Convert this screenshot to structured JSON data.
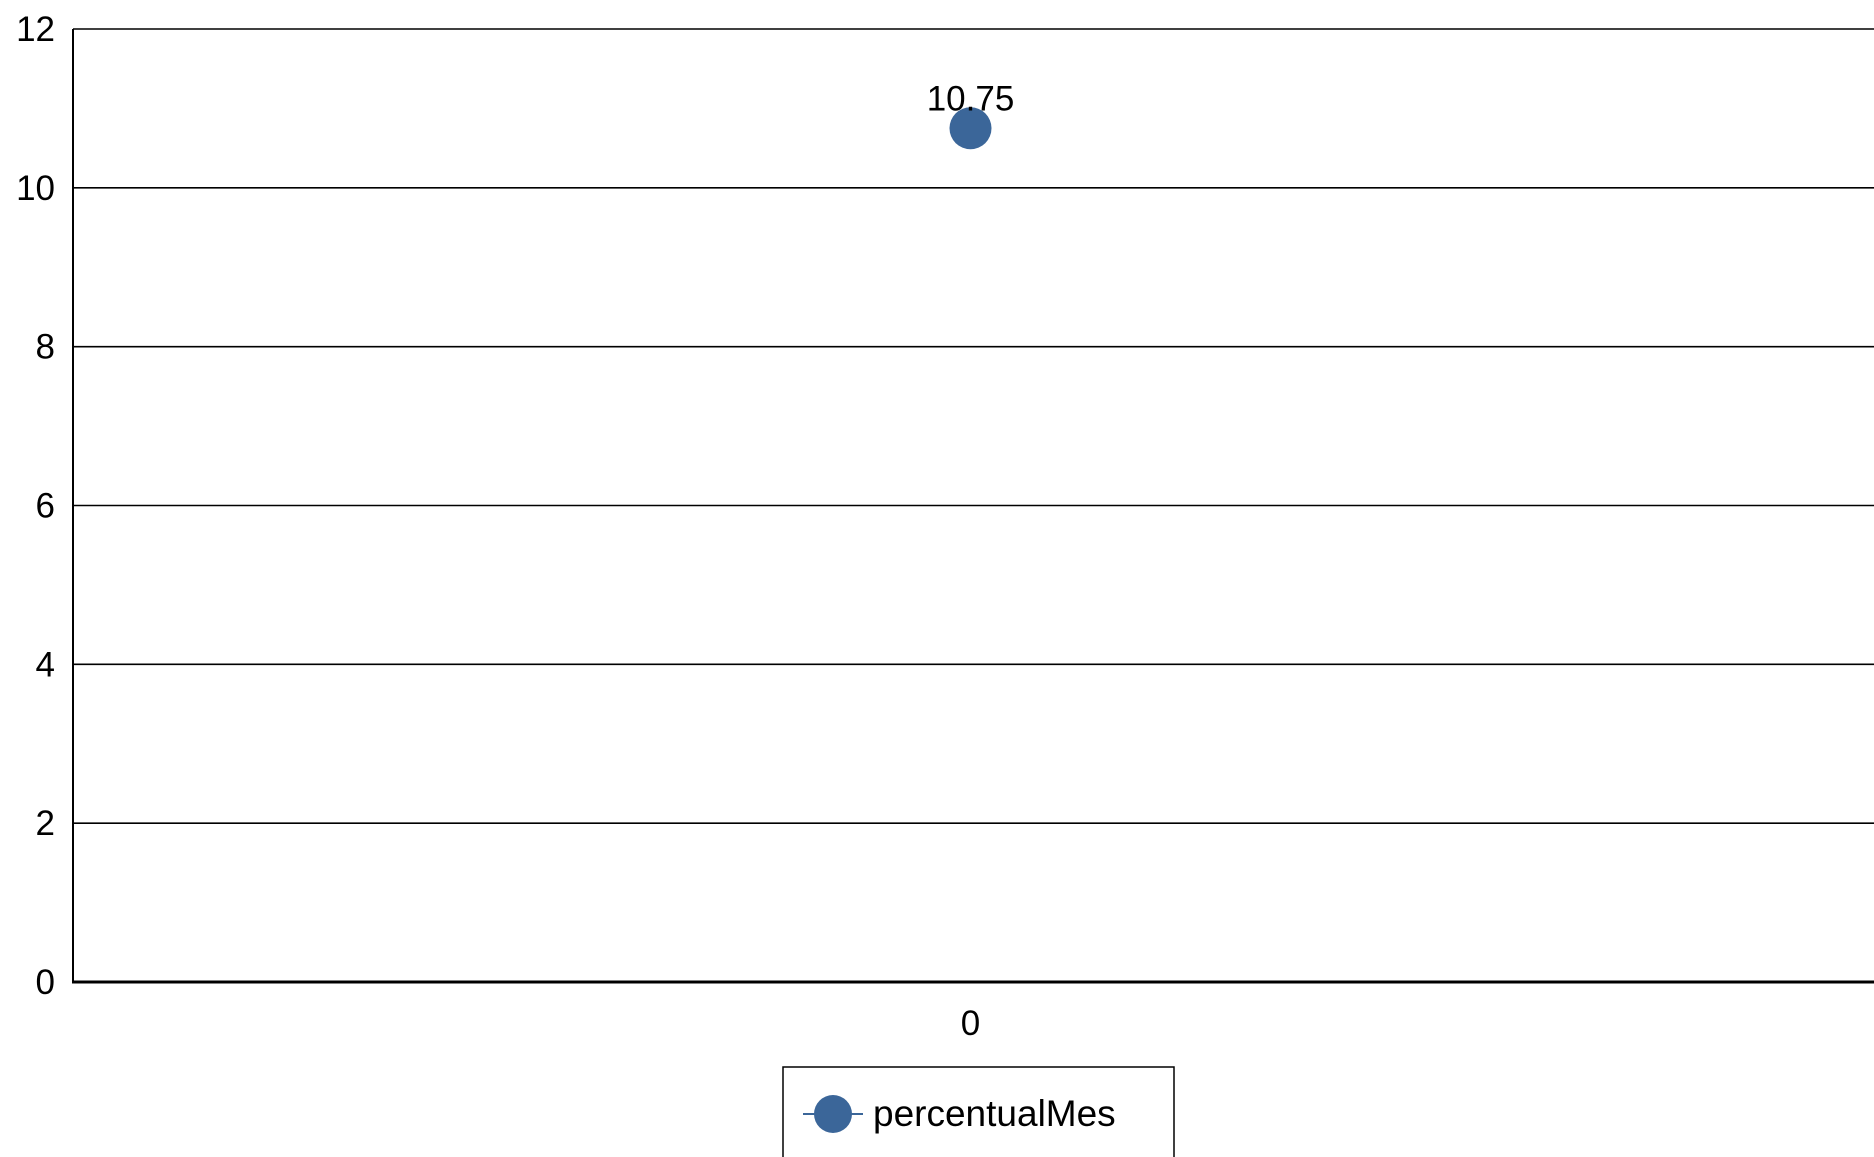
{
  "chart_data": {
    "type": "line",
    "title": "",
    "xlabel": "",
    "ylabel": "",
    "categories": [
      "0"
    ],
    "ylim": [
      0,
      12
    ],
    "y_ticks": [
      0,
      2,
      4,
      6,
      8,
      10,
      12
    ],
    "grid": true,
    "legend_position": "bottom",
    "series": [
      {
        "name": "percentualMes",
        "values": [
          10.75
        ],
        "data_labels": [
          "10.75"
        ],
        "color": "#3b6699",
        "marker": "circle"
      }
    ]
  }
}
